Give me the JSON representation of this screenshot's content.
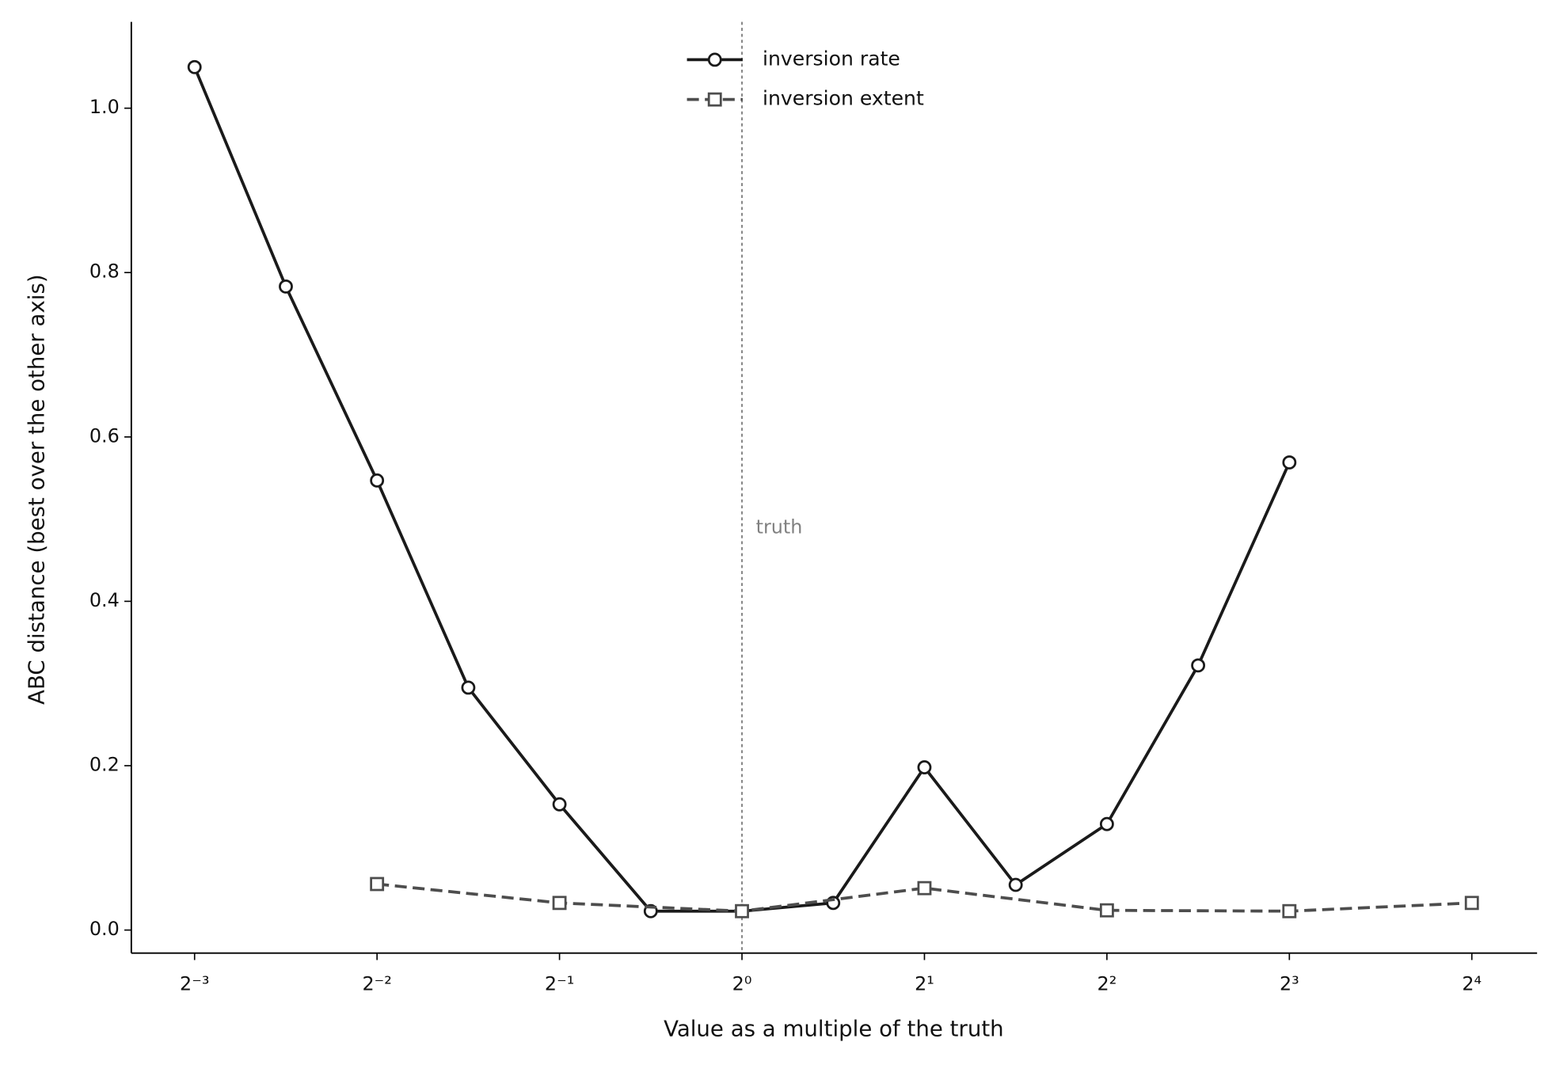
{
  "chart_data": {
    "type": "line",
    "x_label": "Value as a multiple of the truth",
    "y_label": "ABC distance (best over the other axis)",
    "xscale": "log2",
    "xlim": [
      0.0983,
      20.5
    ],
    "ylim": [
      -0.028,
      1.105
    ],
    "xticks": [
      {
        "value": 0.125,
        "label": "2⁻³"
      },
      {
        "value": 0.25,
        "label": "2⁻²"
      },
      {
        "value": 0.5,
        "label": "2⁻¹"
      },
      {
        "value": 1,
        "label": "2⁰"
      },
      {
        "value": 2,
        "label": "2¹"
      },
      {
        "value": 4,
        "label": "2²"
      },
      {
        "value": 8,
        "label": "2³"
      },
      {
        "value": 16,
        "label": "2⁴"
      }
    ],
    "yticks": [
      {
        "value": 0,
        "label": "0.0"
      },
      0.2,
      0.4,
      0.6,
      0.8,
      {
        "value": 1,
        "label": "1.0"
      }
    ],
    "grid": false,
    "legend": "upper center",
    "annotations": [
      {
        "text": "truth",
        "x": 1,
        "color": "#808080"
      }
    ],
    "series": [
      {
        "name": "inversion rate",
        "color": "#1a1a1a",
        "marker": "circle",
        "dashed": false,
        "x": [
          0.125,
          0.1768,
          0.25,
          0.3536,
          0.5,
          0.7071,
          1,
          1.4142,
          2,
          2.8284,
          4,
          5.6569,
          8
        ],
        "values": [
          1.05,
          0.783,
          0.547,
          0.295,
          0.153,
          0.023,
          0.023,
          0.033,
          0.198,
          0.055,
          0.129,
          0.322,
          0.569
        ]
      },
      {
        "name": "inversion extent",
        "color": "#4d4d4d",
        "marker": "square",
        "dashed": true,
        "x": [
          0.25,
          0.5,
          1,
          2,
          4,
          8,
          16
        ],
        "values": [
          0.056,
          0.033,
          0.023,
          0.051,
          0.024,
          0.023,
          0.033
        ]
      }
    ]
  }
}
